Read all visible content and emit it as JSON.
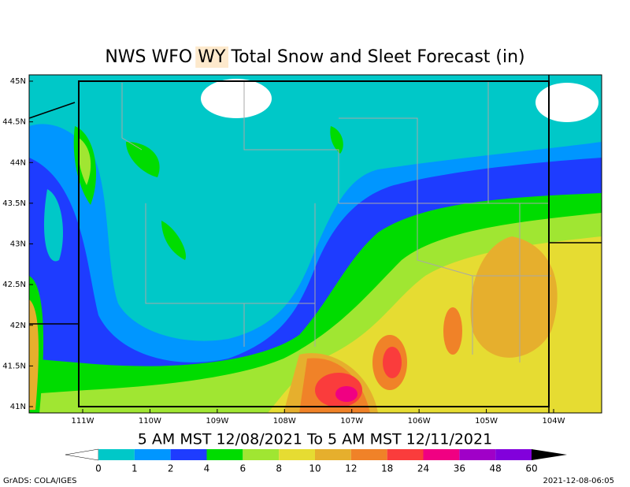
{
  "header": {
    "title_prefix": "NWS WFO",
    "office": "WY",
    "title_suffix": "Total Snow and Sleet Forecast (in)"
  },
  "map": {
    "latitude_labels": [
      "45N",
      "44.5N",
      "44N",
      "43.5N",
      "43N",
      "42.5N",
      "42N",
      "41.5N",
      "41N"
    ],
    "longitude_labels": [
      "111W",
      "110W",
      "109W",
      "108W",
      "107W",
      "106W",
      "105W",
      "104W"
    ]
  },
  "valid_period": "5 AM MST 12/08/2021 To 5 AM MST 12/11/2021",
  "colorbar": {
    "labels": [
      0,
      1,
      2,
      4,
      6,
      8,
      10,
      12,
      18,
      24,
      36,
      48,
      60
    ],
    "colors": [
      "#00c8c8",
      "#0096ff",
      "#1e3cff",
      "#00dc00",
      "#a0e632",
      "#e6dc32",
      "#e6af2d",
      "#f08228",
      "#fa3c3c",
      "#f00082",
      "#a000c8",
      "#8200dc"
    ],
    "below_color": "#ffffff",
    "above_color": "#000000"
  },
  "footer": {
    "credit": "GrADS: COLA/IGES",
    "timestamp": "2021-12-08-06:05"
  }
}
